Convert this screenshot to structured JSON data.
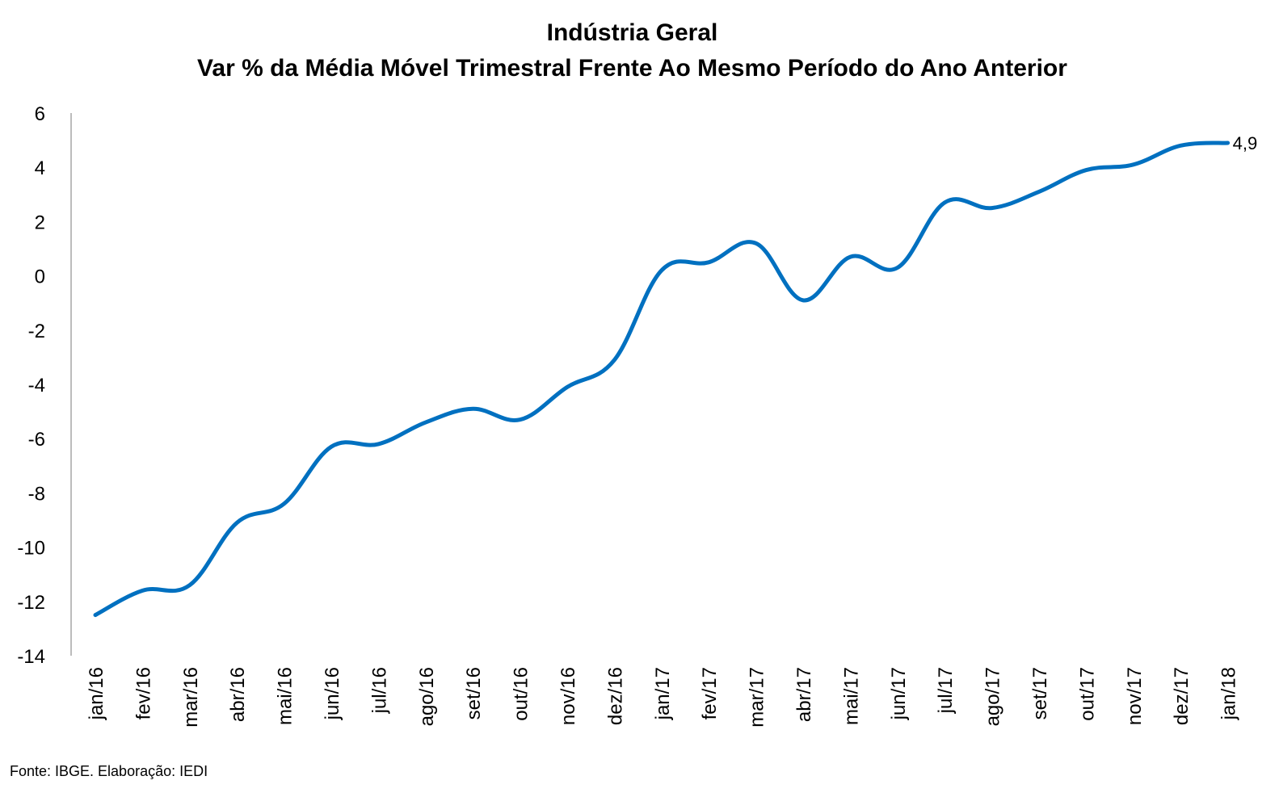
{
  "title": "Indústria Geral",
  "subtitle": "Var % da Média Móvel Trimestral Frente Ao Mesmo Período do Ano Anterior",
  "source": "Fonte: IBGE. Elaboração: IEDI",
  "colors": {
    "series_line": "#0070C0",
    "axis": "#A6A6A6",
    "text": "#000000"
  },
  "chart_data": {
    "type": "line",
    "title": "Indústria Geral",
    "subtitle": "Var % da Média Móvel Trimestral Frente Ao Mesmo Período do Ano Anterior",
    "xlabel": "",
    "ylabel": "",
    "ylim": [
      -14,
      6
    ],
    "yticks": [
      6,
      4,
      2,
      0,
      -2,
      -4,
      -6,
      -8,
      -10,
      -12,
      -14
    ],
    "grid": false,
    "legend": "none",
    "categories": [
      "jan/16",
      "fev/16",
      "mar/16",
      "abr/16",
      "mai/16",
      "jun/16",
      "jul/16",
      "ago/16",
      "set/16",
      "out/16",
      "nov/16",
      "dez/16",
      "jan/17",
      "fev/17",
      "mar/17",
      "abr/17",
      "mai/17",
      "jun/17",
      "jul/17",
      "ago/17",
      "set/17",
      "out/17",
      "nov/17",
      "dez/17",
      "jan/18"
    ],
    "series": [
      {
        "values": [
          -12.5,
          -11.6,
          -11.4,
          -9.1,
          -8.4,
          -6.3,
          -6.2,
          -5.4,
          -4.9,
          -5.3,
          -4.1,
          -3.1,
          0.2,
          0.5,
          1.2,
          -0.9,
          0.7,
          0.3,
          2.7,
          2.5,
          3.1,
          3.9,
          4.1,
          4.8,
          4.9
        ]
      }
    ],
    "data_labels": [
      {
        "category": "jan/18",
        "text": "4,9"
      }
    ]
  }
}
